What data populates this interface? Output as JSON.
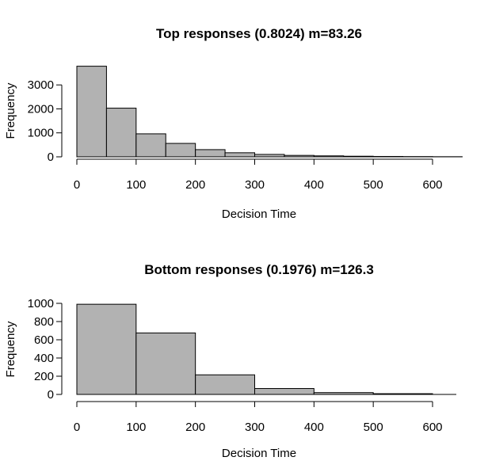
{
  "chart_data": [
    {
      "type": "bar",
      "title": "Top responses (0.8024) m=83.26",
      "xlabel": "Decision Time",
      "ylabel": "Frequency",
      "bin_edges": [
        0,
        50,
        100,
        150,
        200,
        250,
        300,
        350,
        400,
        450,
        500,
        550,
        600,
        650
      ],
      "values": [
        3780,
        2030,
        960,
        560,
        300,
        170,
        100,
        60,
        40,
        25,
        15,
        10,
        5
      ],
      "xlim": [
        0,
        650
      ],
      "ylim": [
        0,
        3800
      ],
      "xticks": [
        0,
        100,
        200,
        300,
        400,
        500,
        600
      ],
      "yticks": [
        0,
        1000,
        2000,
        3000
      ],
      "grid": false
    },
    {
      "type": "bar",
      "title": "Bottom responses (0.1976) m=126.3",
      "xlabel": "Decision Time",
      "ylabel": "Frequency",
      "bin_edges": [
        0,
        100,
        200,
        300,
        400,
        500,
        600
      ],
      "values": [
        990,
        675,
        215,
        65,
        20,
        8
      ],
      "xlim": [
        0,
        650
      ],
      "ylim": [
        0,
        1000
      ],
      "xticks": [
        0,
        100,
        200,
        300,
        400,
        500,
        600
      ],
      "yticks": [
        0,
        200,
        400,
        600,
        800,
        1000
      ],
      "grid": false
    }
  ]
}
